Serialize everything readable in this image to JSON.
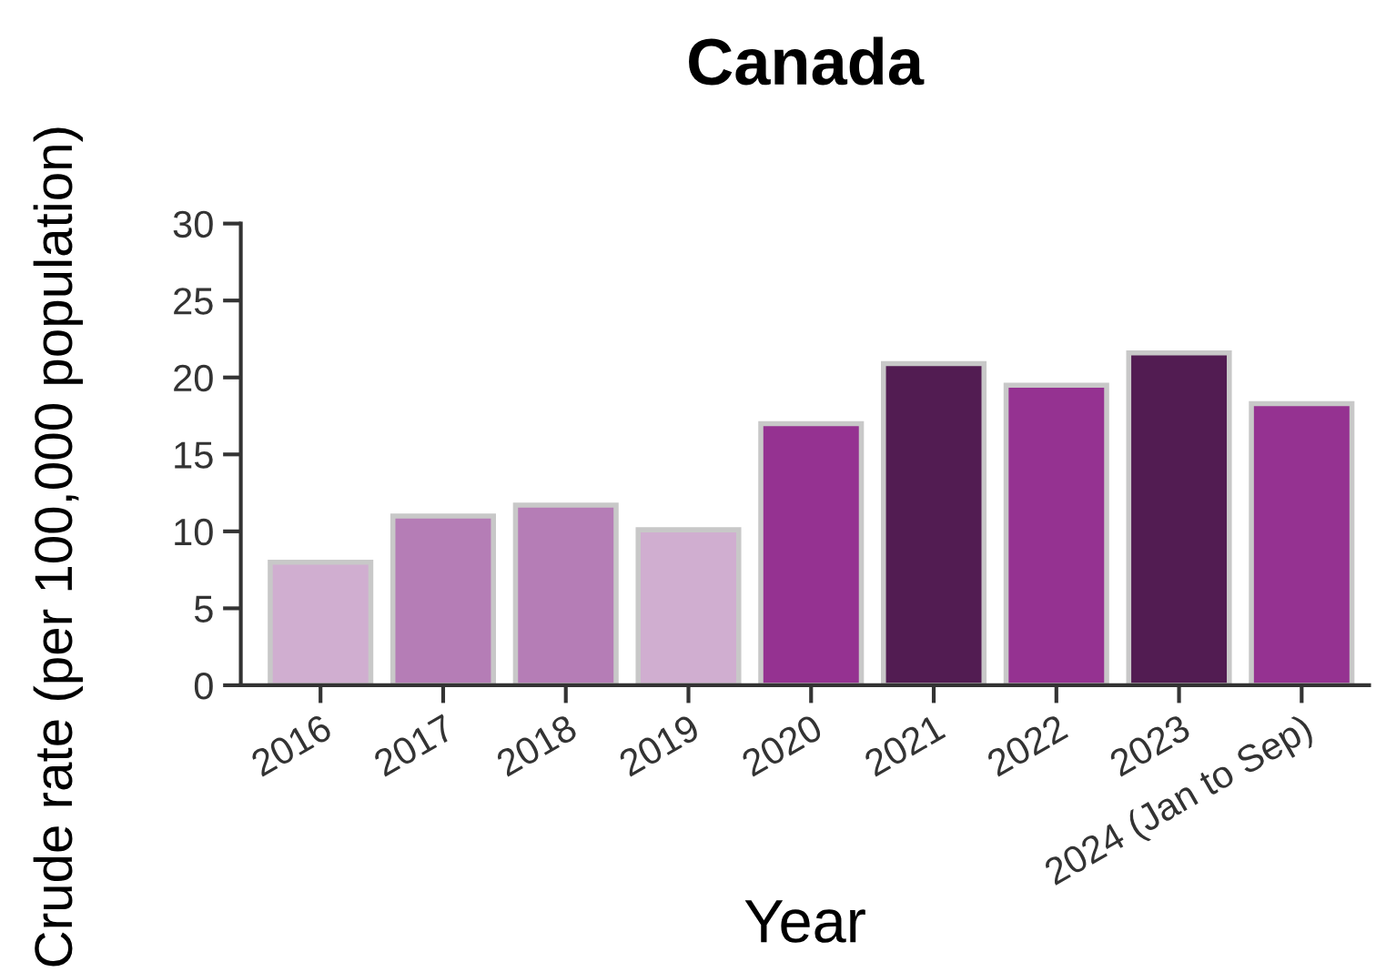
{
  "chart_data": {
    "type": "bar",
    "title": "Canada",
    "xlabel": "Year",
    "ylabel": "Crude rate (per 100,000 population)",
    "categories": [
      "2016",
      "2017",
      "2018",
      "2019",
      "2020",
      "2021",
      "2022",
      "2023",
      "2024 (Jan to Sep)"
    ],
    "values": [
      8.0,
      11.0,
      11.7,
      10.1,
      17.0,
      20.9,
      19.5,
      21.6,
      18.3
    ],
    "colors": [
      "#d0aed0",
      "#b57db6",
      "#b57db6",
      "#d0aed0",
      "#953291",
      "#521c52",
      "#953291",
      "#521c52",
      "#953291"
    ],
    "ylim": [
      0,
      30
    ],
    "yticks": [
      0,
      5,
      10,
      15,
      20,
      25,
      30
    ],
    "grid": false,
    "legend": false
  }
}
